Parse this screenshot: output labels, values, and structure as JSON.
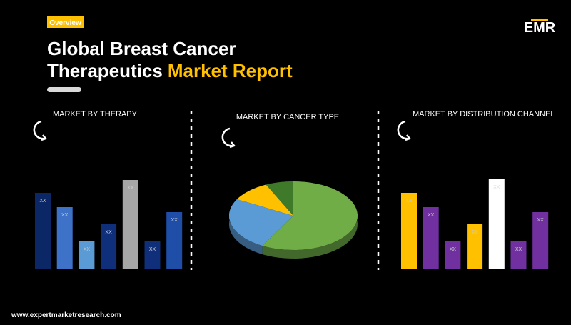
{
  "header": {
    "badge": "Overview",
    "title_line1": "Global Breast Cancer",
    "title_line2": "Therapeutics",
    "title_highlight": "Market Report",
    "logo": "EMR"
  },
  "footer": {
    "url": "www.expertmarketresearch.com"
  },
  "chart_data": [
    {
      "type": "bar",
      "title": "MARKET BY THERAPY",
      "values": [
        107,
        87,
        39,
        63,
        125,
        39,
        80
      ],
      "value_labels": [
        "XX",
        "XX",
        "XX",
        "XX",
        "XX",
        "XX",
        "XX"
      ],
      "colors": [
        "#0c2766",
        "#3d72c8",
        "#5b9bd5",
        "#0f2f7a",
        "#a6a6a6",
        "#0f2f7a",
        "#1f4ea8"
      ]
    },
    {
      "type": "pie",
      "title": "MARKET BY CANCER TYPE",
      "values": [
        58,
        25,
        10,
        7
      ],
      "colors": [
        "#70ad47",
        "#5b9bd5",
        "#ffc000",
        "#3f7a2a"
      ]
    },
    {
      "type": "bar",
      "title": "MARKET BY DISTRIBUTION CHANNEL",
      "values": [
        107,
        87,
        39,
        63,
        126,
        39,
        80
      ],
      "value_labels": [
        "XX",
        "XX",
        "XX",
        "XX",
        "XX",
        "XX",
        "XX"
      ],
      "colors": [
        "#ffc000",
        "#7030a0",
        "#7030a0",
        "#ffc000",
        "#ffffff",
        "#7030a0",
        "#7030a0"
      ]
    }
  ]
}
